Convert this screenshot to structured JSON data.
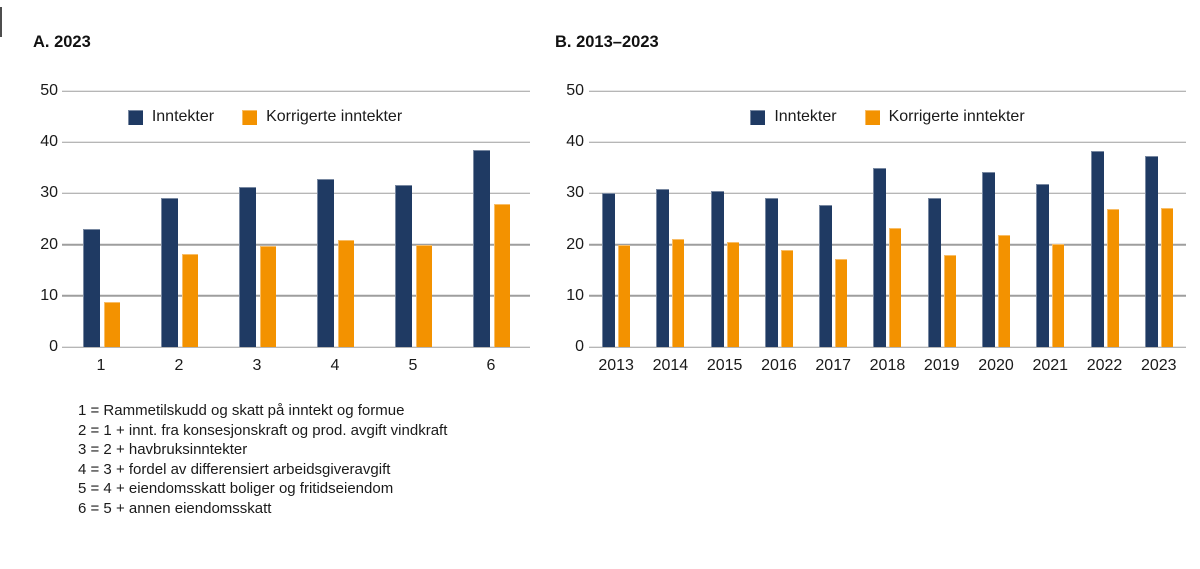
{
  "chart_data": [
    {
      "type": "bar",
      "title": "A. 2023",
      "categories": [
        "1",
        "2",
        "3",
        "4",
        "5",
        "6"
      ],
      "series": [
        {
          "name": "Inntekter",
          "color": "#1f3a63",
          "values": [
            23.0,
            29.1,
            31.2,
            32.8,
            31.7,
            38.4
          ]
        },
        {
          "name": "Korrigerte inntekter",
          "color": "#f39200",
          "values": [
            8.8,
            18.2,
            19.7,
            20.9,
            20.0,
            28.0
          ]
        }
      ],
      "ylim": [
        0,
        50
      ],
      "yticks": [
        0,
        10,
        20,
        30,
        40,
        50
      ],
      "grid": true,
      "legend_position": "top-center"
    },
    {
      "type": "bar",
      "title": "B. 2013–2023",
      "categories": [
        "2013",
        "2014",
        "2015",
        "2016",
        "2017",
        "2018",
        "2019",
        "2020",
        "2021",
        "2022",
        "2023"
      ],
      "series": [
        {
          "name": "Inntekter",
          "color": "#1f3a63",
          "values": [
            30.0,
            30.8,
            30.4,
            29.2,
            27.8,
            34.9,
            29.2,
            34.1,
            31.8,
            38.3,
            37.3
          ]
        },
        {
          "name": "Korrigerte inntekter",
          "color": "#f39200",
          "values": [
            20.0,
            21.0,
            20.5,
            18.9,
            17.1,
            23.2,
            17.9,
            21.8,
            20.2,
            27.0,
            27.2
          ]
        }
      ],
      "ylim": [
        0,
        50
      ],
      "yticks": [
        0,
        10,
        20,
        30,
        40,
        50
      ],
      "grid": true,
      "legend_position": "top-center"
    }
  ],
  "footnotes": [
    "1 = Rammetilskudd og skatt på inntekt og formue",
    "2 = 1 + innt. fra konsesjonskraft og prod. avgift vindkraft",
    "3 = 2 + havbruksinntekter",
    "4 = 3 + fordel av differensiert arbeidsgiveravgift",
    "5 = 4 + eiendomsskatt boliger og fritidseiendom",
    "6 = 5 + annen eiendomsskatt"
  ],
  "colors": {
    "inntekter": "#1f3a63",
    "korrigerte_inntekter": "#f39200",
    "gridline": "#9e9e9e"
  }
}
